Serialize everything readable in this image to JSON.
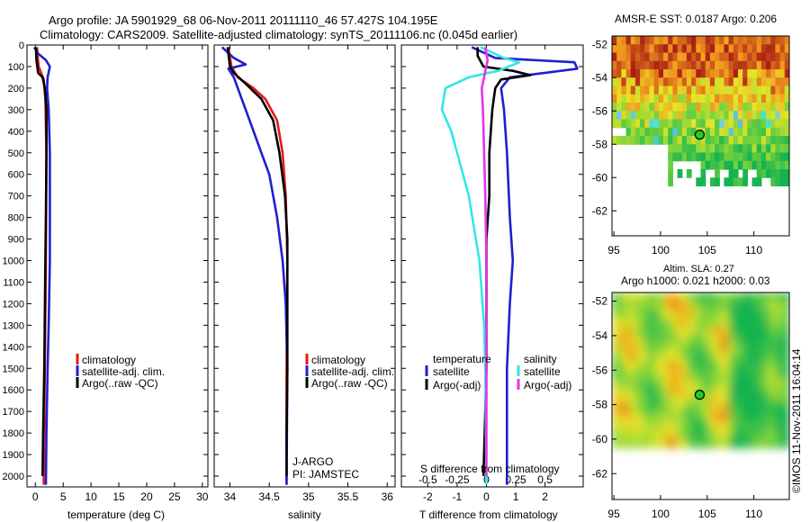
{
  "header": {
    "line1": "Argo profile: JA 5901929_68 06-Nov-2011 20111110_46 57.427S 104.195E",
    "line2": "Climatology: CARS2009. Satellite-adjusted climatology: synTS_20111106.nc (0.045d earlier)"
  },
  "colors": {
    "climatology": "#e41a1c",
    "satellite": "#1f1fd0",
    "argo": "#000000",
    "sal_satellite": "#33e6e6",
    "sal_argo": "#e633e6"
  },
  "chart_data": [
    {
      "type": "line",
      "title": "",
      "xlabel": "temperature (deg C)",
      "ylabel": "",
      "xlim": [
        -1.5,
        31
      ],
      "ylim": [
        2050,
        0
      ],
      "x_ticks": [
        "0",
        "5",
        "10",
        "15",
        "20",
        "25",
        "30"
      ],
      "y_ticks": [
        "0",
        "100",
        "200",
        "300",
        "400",
        "500",
        "600",
        "700",
        "800",
        "900",
        "1000",
        "1100",
        "1200",
        "1300",
        "1400",
        "1500",
        "1600",
        "1700",
        "1800",
        "1900",
        "2000"
      ],
      "legend": [
        "climatology",
        "satellite-adj. clim.",
        "Argo(..raw -QC)"
      ],
      "legend_placement": "center-right",
      "series": [
        {
          "name": "climatology",
          "color_key": "climatology",
          "points": [
            [
              0.3,
              10
            ],
            [
              0.4,
              50
            ],
            [
              0.6,
              100
            ],
            [
              1.5,
              160
            ],
            [
              1.8,
              250
            ],
            [
              2.0,
              500
            ],
            [
              1.9,
              1000
            ],
            [
              1.7,
              1500
            ],
            [
              1.5,
              2000
            ],
            [
              1.5,
              2040
            ]
          ]
        },
        {
          "name": "satellite-adj. clim.",
          "color_key": "satellite",
          "points": [
            [
              -0.2,
              10
            ],
            [
              0.5,
              40
            ],
            [
              1.9,
              70
            ],
            [
              2.6,
              100
            ],
            [
              2.2,
              150
            ],
            [
              2.1,
              200
            ],
            [
              2.4,
              300
            ],
            [
              2.6,
              500
            ],
            [
              2.6,
              1000
            ],
            [
              2.4,
              1300
            ],
            [
              2.2,
              1500
            ],
            [
              2.0,
              1800
            ],
            [
              1.9,
              2040
            ]
          ]
        },
        {
          "name": "Argo(..raw -QC)",
          "color_key": "argo",
          "points": [
            [
              0.1,
              10
            ],
            [
              0.2,
              70
            ],
            [
              0.5,
              130
            ],
            [
              1.3,
              150
            ],
            [
              1.7,
              200
            ],
            [
              2.0,
              300
            ],
            [
              2.0,
              500
            ],
            [
              1.9,
              800
            ],
            [
              1.8,
              1000
            ],
            [
              1.6,
              1500
            ],
            [
              1.4,
              1800
            ],
            [
              1.3,
              2000
            ]
          ]
        }
      ]
    },
    {
      "type": "line",
      "title": "",
      "xlabel": "salinity",
      "ylabel": "",
      "xlim": [
        33.8,
        36.1
      ],
      "ylim": [
        2050,
        0
      ],
      "x_ticks": [
        "34",
        "34.5",
        "35",
        "35.5",
        "36"
      ],
      "legend": [
        "climatology",
        "satellite-adj. clim.",
        "Argo(..raw -QC)"
      ],
      "legend_placement": "center-right",
      "annotations": [
        "J-ARGO",
        "PI: JAMSTEC"
      ],
      "series": [
        {
          "name": "climatology",
          "color_key": "climatology",
          "points": [
            [
              33.98,
              10
            ],
            [
              34.02,
              100
            ],
            [
              34.1,
              150
            ],
            [
              34.3,
              200
            ],
            [
              34.45,
              250
            ],
            [
              34.6,
              350
            ],
            [
              34.67,
              500
            ],
            [
              34.71,
              700
            ],
            [
              34.73,
              1000
            ],
            [
              34.72,
              1500
            ],
            [
              34.72,
              2040
            ]
          ]
        },
        {
          "name": "satellite-adj. clim.",
          "color_key": "satellite",
          "points": [
            [
              33.9,
              10
            ],
            [
              34.05,
              60
            ],
            [
              34.2,
              90
            ],
            [
              33.98,
              110
            ],
            [
              34.05,
              150
            ],
            [
              34.1,
              200
            ],
            [
              34.2,
              300
            ],
            [
              34.3,
              400
            ],
            [
              34.4,
              500
            ],
            [
              34.5,
              600
            ],
            [
              34.6,
              800
            ],
            [
              34.67,
              1000
            ],
            [
              34.71,
              1200
            ],
            [
              34.73,
              1500
            ],
            [
              34.72,
              2040
            ]
          ]
        },
        {
          "name": "Argo(..raw -QC)",
          "color_key": "argo",
          "points": [
            [
              33.97,
              10
            ],
            [
              34.0,
              100
            ],
            [
              34.05,
              130
            ],
            [
              34.2,
              180
            ],
            [
              34.4,
              250
            ],
            [
              34.55,
              350
            ],
            [
              34.63,
              500
            ],
            [
              34.7,
              700
            ],
            [
              34.73,
              900
            ],
            [
              34.73,
              1200
            ],
            [
              34.73,
              1500
            ],
            [
              34.72,
              1800
            ],
            [
              34.72,
              2000
            ]
          ]
        }
      ]
    },
    {
      "type": "line",
      "title": "",
      "xlabel": "T difference from climatology",
      "x2label": "S difference from climatology",
      "ylabel": "",
      "xlim": [
        -2.9,
        3.3
      ],
      "x2lim": [
        -0.725,
        0.825
      ],
      "ylim": [
        2050,
        0
      ],
      "x_ticks": [
        "-2",
        "-1",
        "0",
        "1",
        "2"
      ],
      "x2_ticks": [
        "-0.5",
        "-0.25",
        "0",
        "0.25",
        "0.5"
      ],
      "legend_groups": [
        {
          "title": "temperature",
          "items": [
            "satellite",
            "Argo(-adj)"
          ]
        },
        {
          "title": "salinity",
          "items": [
            "satellite",
            "Argo(-adj)"
          ]
        }
      ],
      "series": [
        {
          "name": "temperature satellite",
          "color_key": "satellite",
          "axis": "T",
          "points": [
            [
              -0.5,
              10
            ],
            [
              0.3,
              60
            ],
            [
              3.0,
              80
            ],
            [
              3.1,
              110
            ],
            [
              0.8,
              150
            ],
            [
              0.5,
              200
            ],
            [
              0.6,
              300
            ],
            [
              0.7,
              500
            ],
            [
              0.8,
              800
            ],
            [
              0.9,
              1000
            ],
            [
              0.8,
              1200
            ],
            [
              0.7,
              1500
            ],
            [
              0.7,
              2000
            ],
            [
              0.7,
              2040
            ]
          ]
        },
        {
          "name": "temperature Argo(-adj)",
          "color_key": "argo",
          "axis": "T",
          "points": [
            [
              -0.3,
              10
            ],
            [
              -0.3,
              50
            ],
            [
              -0.1,
              100
            ],
            [
              0.9,
              120
            ],
            [
              1.5,
              140
            ],
            [
              0.5,
              160
            ],
            [
              0.3,
              200
            ],
            [
              0.2,
              300
            ],
            [
              0.1,
              500
            ],
            [
              0.1,
              700
            ],
            [
              0.0,
              900
            ],
            [
              0.0,
              1500
            ],
            [
              -0.1,
              2000
            ]
          ]
        },
        {
          "name": "salinity satellite",
          "color_key": "sal_satellite",
          "axis": "S",
          "points": [
            [
              -0.05,
              10
            ],
            [
              0.15,
              60
            ],
            [
              0.28,
              80
            ],
            [
              0.1,
              120
            ],
            [
              -0.15,
              150
            ],
            [
              -0.35,
              200
            ],
            [
              -0.38,
              300
            ],
            [
              -0.3,
              400
            ],
            [
              -0.25,
              500
            ],
            [
              -0.2,
              600
            ],
            [
              -0.15,
              700
            ],
            [
              -0.12,
              800
            ],
            [
              -0.06,
              1000
            ],
            [
              -0.02,
              1300
            ],
            [
              -0.01,
              1500
            ],
            [
              0.0,
              2040
            ]
          ]
        },
        {
          "name": "salinity Argo(-adj)",
          "color_key": "sal_argo",
          "axis": "S",
          "points": [
            [
              -0.01,
              10
            ],
            [
              0.01,
              70
            ],
            [
              -0.02,
              150
            ],
            [
              -0.04,
              200
            ],
            [
              -0.03,
              300
            ],
            [
              -0.02,
              500
            ],
            [
              -0.01,
              700
            ],
            [
              0.0,
              1000
            ],
            [
              0.0,
              1500
            ],
            [
              0.0,
              2000
            ]
          ]
        }
      ]
    },
    {
      "type": "heatmap",
      "title": "AMSR-E SST: 0.0187 Argo: 0.206",
      "xlim": [
        94.8,
        113.8
      ],
      "ylim": [
        -63.5,
        -51.5
      ],
      "x_ticks": [
        95,
        100,
        105,
        110
      ],
      "y_ticks": [
        -52,
        -54,
        -56,
        -58,
        -60,
        -62
      ],
      "marker": {
        "lon": 104.195,
        "lat": -57.427
      }
    },
    {
      "type": "heatmap",
      "title": "Altim. SLA: 0.27",
      "subtitle": "Argo h1000: 0.021 h2000: 0.03",
      "xlim": [
        94.8,
        113.8
      ],
      "ylim": [
        -63.5,
        -51.5
      ],
      "x_ticks": [
        95,
        100,
        105,
        110
      ],
      "y_ticks": [
        -52,
        -54,
        -56,
        -58,
        -60,
        -62
      ],
      "marker": {
        "lon": 104.195,
        "lat": -57.427
      }
    }
  ],
  "credit": "©IMOS 11-Nov-2011 16:04:14"
}
